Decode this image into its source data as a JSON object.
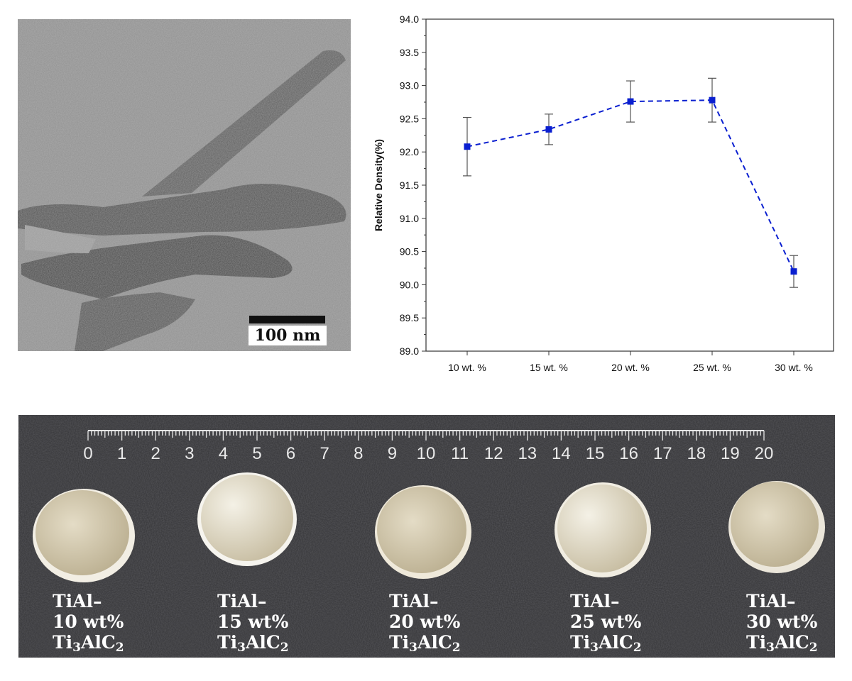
{
  "tem_image": {
    "scale_bar_label": "100 nm"
  },
  "chart_data": {
    "type": "line",
    "categories": [
      "10 wt. %",
      "15 wt. %",
      "20 wt. %",
      "25 wt. %",
      "30 wt. %"
    ],
    "series": [
      {
        "values": [
          92.08,
          92.34,
          92.76,
          92.78,
          90.2
        ],
        "errors": [
          0.44,
          0.23,
          0.31,
          0.33,
          0.24
        ],
        "color": "#0a1fd0",
        "line_style": "dashed",
        "marker": "square"
      }
    ],
    "title": "",
    "xlabel": "",
    "ylabel": "Relative Density(%)",
    "ylim": [
      89.0,
      94.0
    ],
    "yticks": [
      "89.0",
      "89.5",
      "90.0",
      "90.5",
      "91.0",
      "91.5",
      "92.0",
      "92.5",
      "93.0",
      "93.5",
      "94.0"
    ],
    "grid": false,
    "legend": "none"
  },
  "photo": {
    "ruler_numbers": [
      "0",
      "1",
      "2",
      "3",
      "4",
      "5",
      "6",
      "7",
      "8",
      "9",
      "10",
      "11",
      "12",
      "13",
      "14",
      "15",
      "16",
      "17",
      "18",
      "19",
      "20"
    ],
    "samples": [
      {
        "line1": "TiAl–",
        "line2": "10 wt%",
        "formula_a": "Ti",
        "sub_a": "3",
        "formula_b": "AlC",
        "sub_b": "2"
      },
      {
        "line1": "TiAl–",
        "line2": "15 wt%",
        "formula_a": "Ti",
        "sub_a": "3",
        "formula_b": "AlC",
        "sub_b": "2"
      },
      {
        "line1": "TiAl–",
        "line2": "20 wt%",
        "formula_a": "Ti",
        "sub_a": "3",
        "formula_b": "AlC",
        "sub_b": "2"
      },
      {
        "line1": "TiAl–",
        "line2": "25 wt%",
        "formula_a": "Ti",
        "sub_a": "3",
        "formula_b": "AlC",
        "sub_b": "2"
      },
      {
        "line1": "TiAl–",
        "line2": "30 wt%",
        "formula_a": "Ti",
        "sub_a": "3",
        "formula_b": "AlC",
        "sub_b": "2"
      }
    ]
  }
}
